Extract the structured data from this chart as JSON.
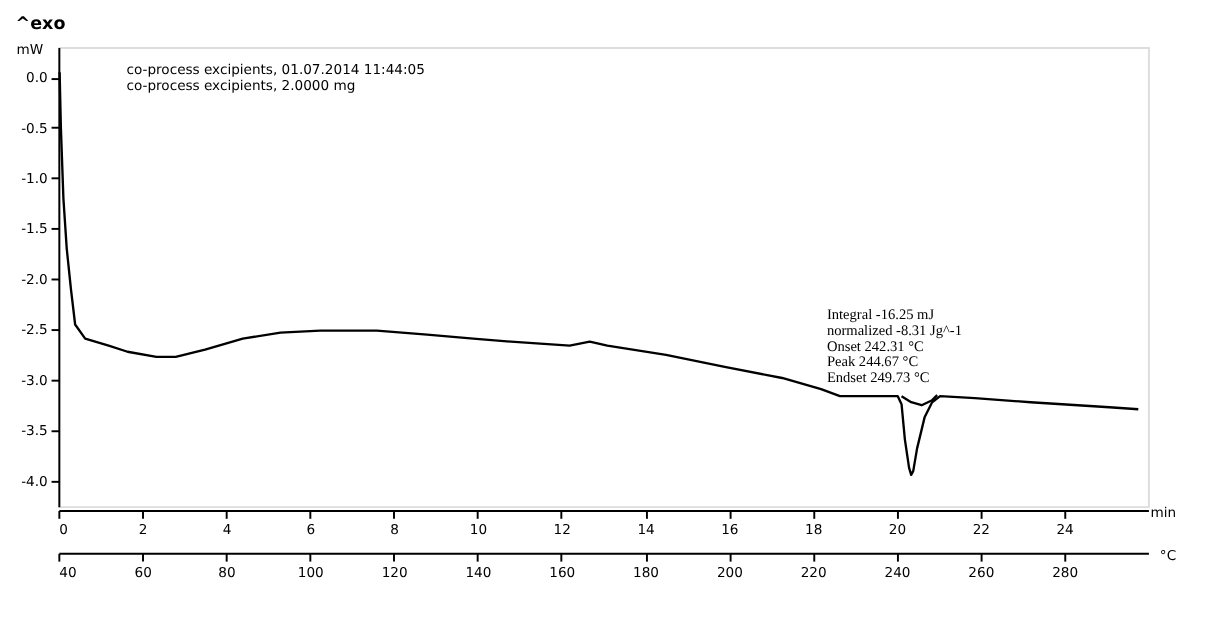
{
  "chart_data": {
    "type": "line",
    "title": "^exo",
    "xlabel": "°C",
    "ylabel": "mW",
    "x2label": "min",
    "annotations": [
      "co-process excipients, 01.07.2014 11:44:05",
      "co-process excipients, 2.0000 mg",
      "Integral -16.25 mJ",
      "normalized -8.31 Jg^-1",
      "Onset 242.31 °C",
      "Peak 244.67 °C",
      "Endset 249.73 °C"
    ],
    "series": [
      {
        "color": "#000000",
        "x": [
          40.3,
          40.6,
          41.2,
          42,
          43,
          44,
          46.4,
          52,
          56.5,
          63.4,
          68,
          75,
          84,
          93,
          102.5,
          116,
          128,
          139,
          148,
          162,
          166.8,
          171,
          185,
          199,
          212.7,
          222,
          226.5,
          238,
          240.3,
          241.2,
          242,
          243,
          243.5,
          244,
          244.9,
          246.7,
          248.5,
          250.4,
          258.7,
          272,
          290.8,
          297.7
        ],
        "values": [
          0.05,
          -0.5,
          -1.2,
          -1.7,
          -2.1,
          -2.45,
          -2.59,
          -2.66,
          -2.72,
          -2.77,
          -2.77,
          -2.7,
          -2.59,
          -2.53,
          -2.51,
          -2.51,
          -2.55,
          -2.59,
          -2.62,
          -2.66,
          -2.62,
          -2.66,
          -2.75,
          -2.87,
          -2.98,
          -3.09,
          -3.16,
          -3.16,
          -3.16,
          -3.24,
          -3.59,
          -3.87,
          -3.94,
          -3.9,
          -3.68,
          -3.37,
          -3.22,
          -3.16,
          -3.18,
          -3.22,
          -3.27,
          -3.29
        ]
      },
      {
        "color": "#000000",
        "x": [
          241.2,
          243.5,
          246,
          248.5,
          249.7
        ],
        "values": [
          -3.16,
          -3.22,
          -3.25,
          -3.2,
          -3.15
        ]
      }
    ],
    "xlim": [
      40,
      300
    ],
    "xticks": [
      40,
      60,
      80,
      100,
      120,
      140,
      160,
      180,
      200,
      220,
      240,
      260,
      280
    ],
    "x2lim": [
      0,
      26
    ],
    "x2ticks": [
      0,
      2,
      4,
      6,
      8,
      10,
      12,
      14,
      16,
      18,
      20,
      22,
      24
    ],
    "ylim": [
      -4.25,
      0.3
    ],
    "yticks": [
      {
        "value": 0,
        "label": "0.0"
      },
      -0.5,
      {
        "value": -1,
        "label": "-1.0"
      },
      -1.5,
      {
        "value": -2,
        "label": "-2.0"
      },
      -2.5,
      {
        "value": -3,
        "label": "-3.0"
      },
      -3.5,
      {
        "value": -4,
        "label": "-4.0"
      }
    ]
  }
}
